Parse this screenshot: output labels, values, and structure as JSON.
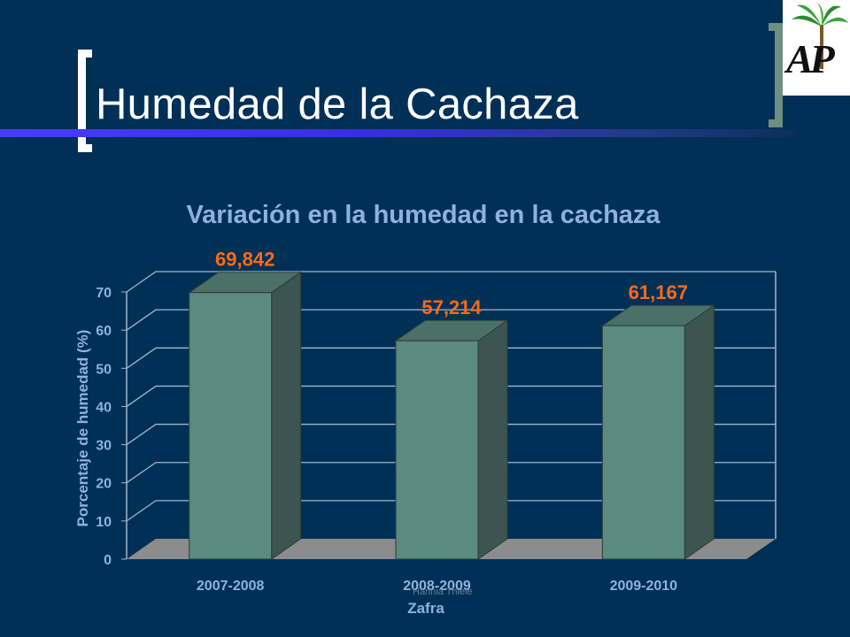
{
  "slide": {
    "title": "Humedad de la Cachaza",
    "logo_text": "AP",
    "watermark": "Hannia Thiele"
  },
  "colors": {
    "background": "#013057",
    "bar_front": "#5a8a80",
    "bar_side": "#3c5550",
    "bar_top": "#4b7068",
    "data_label": "#ff6a13",
    "chart_text": "#8fb1dc",
    "gridline": "#9fb6cf",
    "floor": "#8c8c8c"
  },
  "chart_data": {
    "type": "bar",
    "title": "Variación en la humedad en la cachaza",
    "xlabel": "Zafra",
    "ylabel": "Porcentaje de humedad (%)",
    "categories": [
      "2007-2008",
      "2008-2009",
      "2009-2010"
    ],
    "values": [
      69.842,
      57.214,
      61.167
    ],
    "data_labels": [
      "69,842",
      "57,214",
      "61,167"
    ],
    "y_ticks": [
      "0",
      "10",
      "20",
      "30",
      "40",
      "50",
      "60",
      "70"
    ],
    "ylim": [
      0,
      70
    ],
    "grid": true,
    "legend": "none",
    "three_d": true
  }
}
